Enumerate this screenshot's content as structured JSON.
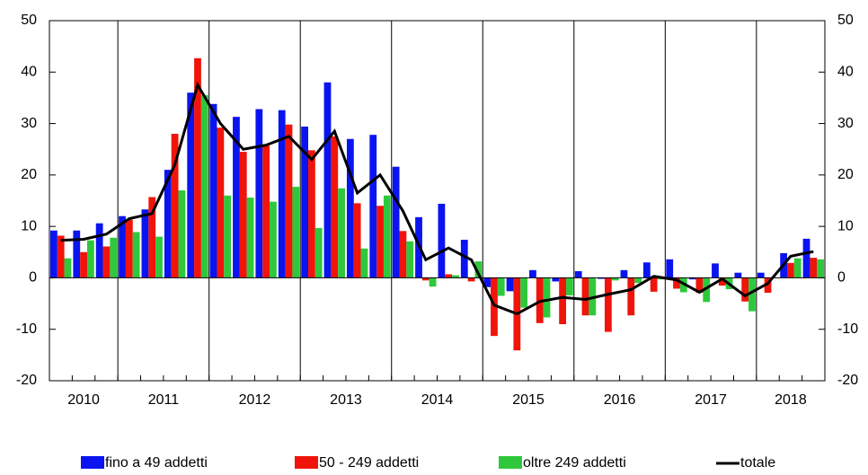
{
  "chart_data": {
    "type": "bar",
    "categories": [
      null,
      "2010",
      null,
      "2011",
      null,
      null,
      null,
      "2012",
      null,
      null,
      null,
      "2013",
      null,
      null,
      null,
      "2014",
      null,
      null,
      null,
      "2015",
      null,
      null,
      null,
      "2016",
      null,
      null,
      null,
      "2017",
      null,
      null,
      null,
      "2018",
      null,
      null
    ],
    "series": [
      {
        "name": "fino a 49 addetti",
        "color": "#0a14f0",
        "values": [
          9.2,
          9.2,
          10.6,
          12,
          13.3,
          21,
          36,
          33.8,
          31.3,
          32.8,
          32.6,
          29.4,
          38,
          27,
          27.8,
          21.6,
          11.8,
          14.4,
          7.4,
          -1.8,
          -2.6,
          1.5,
          -0.7,
          1.3,
          -0.2,
          1.5,
          3,
          3.6,
          -0.3,
          2.8,
          1,
          1,
          4.8,
          7.6
        ]
      },
      {
        "name": "50 - 249 addetti",
        "color": "#f0140a",
        "values": [
          8.2,
          5,
          6.1,
          11.3,
          15.7,
          28,
          42.7,
          29.2,
          24.5,
          25.7,
          29.8,
          24.8,
          27.5,
          14.5,
          14,
          9.1,
          -0.5,
          0.7,
          -0.7,
          -11.3,
          -14.1,
          -8.8,
          -9,
          -7.3,
          -10.5,
          -7.3,
          -2.7,
          -2.1,
          -2.9,
          -1.5,
          -4.6,
          -2.9,
          2.9,
          3.9
        ]
      },
      {
        "name": "oltre 249 addetti",
        "color": "#2fc83c",
        "values": [
          3.8,
          7.3,
          7.8,
          8.9,
          8,
          17,
          35.5,
          16,
          15.6,
          14.8,
          17.7,
          9.7,
          17.4,
          5.7,
          16,
          7.1,
          -1.7,
          0.5,
          3.2,
          -3.5,
          -5.8,
          -7.7,
          -3.4,
          -7.3,
          -0.5,
          -1,
          -0.3,
          -2.8,
          -4.7,
          -2.2,
          -6.5,
          0,
          3.8,
          3.6
        ]
      },
      {
        "name": "totale",
        "type": "line",
        "color": "#000000",
        "values": [
          7.3,
          7.5,
          8.5,
          11.5,
          12.5,
          22,
          37.5,
          30,
          25,
          25.8,
          27.5,
          23,
          28.5,
          16.5,
          20,
          13,
          3.5,
          5.8,
          3.5,
          -5.3,
          -7,
          -4.6,
          -3.8,
          -4.2,
          -3.2,
          -2.3,
          0.3,
          -0.4,
          -2.8,
          -0.2,
          -3.5,
          -1.1,
          4.2,
          5.1
        ]
      }
    ],
    "ylim": [
      -20,
      50
    ],
    "yticks": [
      -20,
      -10,
      0,
      10,
      20,
      30,
      40,
      50
    ],
    "y2lim": [
      -20,
      50
    ],
    "y2ticks": [
      -20,
      -10,
      0,
      10,
      20,
      30,
      40,
      50
    ]
  }
}
